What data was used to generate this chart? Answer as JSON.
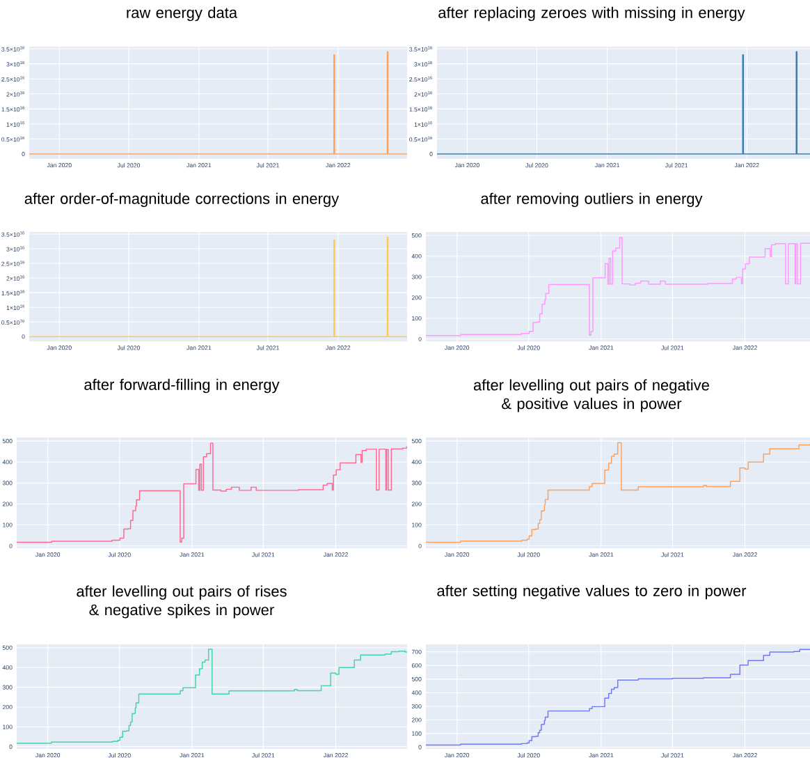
{
  "chart_data": [
    {
      "type": "step",
      "title": "raw energy data",
      "color": "#FFA15A",
      "grid": true,
      "xlim": [
        "2019-10-14",
        "2022-07-01"
      ],
      "ylim": [
        -1600000000000000.0,
        3.57e+16
      ],
      "xticks": [
        {
          "value": "2020-01-01",
          "label": "Jan 2020"
        },
        {
          "value": "2020-07-01",
          "label": "Jul 2020"
        },
        {
          "value": "2021-01-01",
          "label": "Jan 2021"
        },
        {
          "value": "2021-07-01",
          "label": "Jul 2021"
        },
        {
          "value": "2022-01-01",
          "label": "Jan 2022"
        }
      ],
      "yticks": [
        0,
        {
          "value": 5000000000000000.0,
          "label": "0.5×10$^{16}$"
        },
        {
          "value": 1e+16,
          "label": "1×10$^{16}$"
        },
        {
          "value": 1.5e+16,
          "label": "1.5×10$^{16}$"
        },
        {
          "value": 2e+16,
          "label": "2×10$^{16}$"
        },
        {
          "value": 2.5e+16,
          "label": "2.5×10$^{16}$"
        },
        {
          "value": 3e+16,
          "label": "3×10$^{16}$"
        },
        {
          "value": 3.5e+16,
          "label": "3.5×10$^{16}$"
        }
      ],
      "x": [
        "2019-10-14",
        "2021-12-21",
        "2021-12-23",
        "2022-05-10",
        "2022-05-12",
        "2022-07-01"
      ],
      "values": [
        0,
        3.3e+16,
        0,
        3.4e+16,
        0,
        0
      ]
    },
    {
      "type": "step",
      "title": "after replacing zeroes with missing in energy",
      "color": "#3A7DAE",
      "grid": true,
      "xlim": [
        "2019-10-14",
        "2022-06-15"
      ],
      "ylim": [
        -1600000000000000.0,
        3.57e+16
      ],
      "xticks": [
        {
          "value": "2020-01-01",
          "label": "Jan 2020"
        },
        {
          "value": "2020-07-01",
          "label": "Jul 2020"
        },
        {
          "value": "2021-01-01",
          "label": "Jan 2021"
        },
        {
          "value": "2021-07-01",
          "label": "Jul 2021"
        },
        {
          "value": "2022-01-01",
          "label": "Jan 2022"
        }
      ],
      "yticks": [
        0,
        {
          "value": 5000000000000000.0,
          "label": "0.5×10$^{16}$"
        },
        {
          "value": 1e+16,
          "label": "1×10$^{16}$"
        },
        {
          "value": 1.5e+16,
          "label": "1.5×10$^{16}$"
        },
        {
          "value": 2e+16,
          "label": "2×10$^{16}$"
        },
        {
          "value": 2.5e+16,
          "label": "2.5×10$^{16}$"
        },
        {
          "value": 3e+16,
          "label": "3×10$^{16}$"
        },
        {
          "value": 3.5e+16,
          "label": "3.5×10$^{16}$"
        }
      ],
      "x": [
        "2019-10-14",
        "2021-12-21",
        "2021-12-23",
        "2022-05-10",
        "2022-05-12",
        "2022-06-15"
      ],
      "values": [
        0,
        3.3e+16,
        0,
        3.4e+16,
        0,
        0
      ]
    },
    {
      "type": "step",
      "title": "after order-of-magnitude corrections in energy",
      "color": "#FECB52",
      "grid": true,
      "xlim": [
        "2019-10-14",
        "2022-07-01"
      ],
      "ylim": [
        -1600000000000000.0,
        3.57e+16
      ],
      "xticks": [
        {
          "value": "2020-01-01",
          "label": "Jan 2020"
        },
        {
          "value": "2020-07-01",
          "label": "Jul 2020"
        },
        {
          "value": "2021-01-01",
          "label": "Jan 2021"
        },
        {
          "value": "2021-07-01",
          "label": "Jul 2021"
        },
        {
          "value": "2022-01-01",
          "label": "Jan 2022"
        }
      ],
      "yticks": [
        0,
        {
          "value": 5000000000000000.0,
          "label": "0.5×10$^{16}$"
        },
        {
          "value": 1e+16,
          "label": "1×10$^{16}$"
        },
        {
          "value": 1.5e+16,
          "label": "1.5×10$^{16}$"
        },
        {
          "value": 2e+16,
          "label": "2×10$^{16}$"
        },
        {
          "value": 2.5e+16,
          "label": "2.5×10$^{16}$"
        },
        {
          "value": 3e+16,
          "label": "3×10$^{16}$"
        },
        {
          "value": 3.5e+16,
          "label": "3.5×10$^{16}$"
        }
      ],
      "x": [
        "2019-10-14",
        "2021-12-21",
        "2021-12-23",
        "2022-05-10",
        "2022-05-12",
        "2022-07-01"
      ],
      "values": [
        0,
        3.3e+16,
        0,
        3.4e+16,
        0,
        0
      ]
    },
    {
      "type": "step",
      "title": "after removing outliers in energy",
      "color": "#FF97FF",
      "grid": true,
      "xlim": [
        "2019-10-14",
        "2022-06-15"
      ],
      "ylim": [
        -11,
        517
      ],
      "xticks": [
        {
          "value": "2020-01-01",
          "label": "Jan 2020"
        },
        {
          "value": "2020-07-01",
          "label": "Jul 2020"
        },
        {
          "value": "2021-01-01",
          "label": "Jan 2021"
        },
        {
          "value": "2021-07-01",
          "label": "Jul 2021"
        },
        {
          "value": "2022-01-01",
          "label": "Jan 2022"
        }
      ],
      "yticks": [
        0,
        100,
        200,
        300,
        400,
        500
      ],
      "x": [
        "2019-10-14",
        "2020-01-11",
        "2020-06-12",
        "2020-07-02",
        "2020-07-12",
        "2020-07-22",
        "2020-07-29",
        "2020-08-04",
        "2020-08-11",
        "2020-08-13",
        "2020-08-21",
        "2020-12-02",
        "2020-12-06",
        "2020-12-11",
        "2021-01-11",
        "2021-01-18",
        "2021-01-21",
        "2021-01-25",
        "2021-01-30",
        "2021-02-07",
        "2021-02-17",
        "2021-02-23",
        "2021-03-15",
        "2021-03-29",
        "2021-04-11",
        "2021-05-01",
        "2021-05-31",
        "2021-06-13",
        "2021-09-28",
        "2021-11-30",
        "2021-12-10",
        "2021-12-23",
        "2021-12-26",
        "2022-01-02",
        "2022-01-12",
        "2022-02-21",
        "2022-03-06",
        "2022-03-09",
        "2022-03-19",
        "2022-04-14",
        "2022-04-21",
        "2022-05-08",
        "2022-05-10",
        "2022-05-14",
        "2022-05-22",
        "2022-06-15"
      ],
      "values": [
        17,
        22,
        27,
        37,
        80,
        82,
        122,
        168,
        190,
        220,
        263,
        18,
        37,
        296,
        364,
        265,
        390,
        265,
        425,
        440,
        490,
        266,
        261,
        270,
        280,
        265,
        280,
        265,
        268,
        290,
        298,
        266,
        338,
        363,
        396,
        436,
        398,
        455,
        461,
        266,
        461,
        266,
        460,
        266,
        462,
        462
      ]
    },
    {
      "type": "step",
      "title": "after forward-filling in energy",
      "color": "#FF6692",
      "grid": true,
      "xlim": [
        "2019-10-14",
        "2022-07-01"
      ],
      "ylim": [
        -11,
        517
      ],
      "xticks": [
        {
          "value": "2020-01-01",
          "label": "Jan 2020"
        },
        {
          "value": "2020-07-01",
          "label": "Jul 2020"
        },
        {
          "value": "2021-01-01",
          "label": "Jan 2021"
        },
        {
          "value": "2021-07-01",
          "label": "Jul 2021"
        },
        {
          "value": "2022-01-01",
          "label": "Jan 2022"
        }
      ],
      "yticks": [
        0,
        100,
        200,
        300,
        400,
        500
      ],
      "x": [
        "2019-10-14",
        "2020-01-11",
        "2020-06-12",
        "2020-07-02",
        "2020-07-12",
        "2020-07-22",
        "2020-07-29",
        "2020-08-04",
        "2020-08-11",
        "2020-08-13",
        "2020-08-21",
        "2020-12-02",
        "2020-12-06",
        "2020-12-11",
        "2021-01-11",
        "2021-01-18",
        "2021-01-21",
        "2021-01-25",
        "2021-01-30",
        "2021-02-07",
        "2021-02-17",
        "2021-02-23",
        "2021-03-15",
        "2021-03-29",
        "2021-04-11",
        "2021-05-01",
        "2021-05-31",
        "2021-06-13",
        "2021-09-28",
        "2021-11-30",
        "2021-12-10",
        "2021-12-23",
        "2021-12-26",
        "2022-01-02",
        "2022-01-12",
        "2022-02-21",
        "2022-03-06",
        "2022-03-09",
        "2022-03-19",
        "2022-04-14",
        "2022-04-21",
        "2022-05-08",
        "2022-05-10",
        "2022-05-14",
        "2022-05-22",
        "2022-06-20",
        "2022-06-30"
      ],
      "values": [
        17,
        22,
        27,
        37,
        80,
        82,
        122,
        168,
        190,
        220,
        263,
        18,
        37,
        296,
        364,
        265,
        390,
        265,
        425,
        440,
        490,
        266,
        261,
        270,
        280,
        265,
        280,
        265,
        268,
        290,
        298,
        266,
        338,
        363,
        396,
        436,
        398,
        455,
        461,
        266,
        461,
        266,
        460,
        266,
        462,
        466,
        475
      ]
    },
    {
      "type": "step",
      "title": "after levelling out pairs of negative & positive values in power",
      "color": "#FFA15A",
      "grid": true,
      "xlim": [
        "2019-10-14",
        "2022-06-15"
      ],
      "ylim": [
        -11,
        517
      ],
      "xticks": [
        {
          "value": "2020-01-01",
          "label": "Jan 2020"
        },
        {
          "value": "2020-07-01",
          "label": "Jul 2020"
        },
        {
          "value": "2021-01-01",
          "label": "Jan 2021"
        },
        {
          "value": "2021-07-01",
          "label": "Jul 2021"
        },
        {
          "value": "2022-01-01",
          "label": "Jan 2022"
        }
      ],
      "yticks": [
        0,
        100,
        200,
        300,
        400,
        500
      ],
      "x": [
        "2019-10-14",
        "2020-01-10",
        "2020-06-13",
        "2020-06-27",
        "2020-07-02",
        "2020-07-09",
        "2020-07-18",
        "2020-07-25",
        "2020-07-29",
        "2020-08-02",
        "2020-08-08",
        "2020-08-10",
        "2020-08-12",
        "2020-08-19",
        "2020-12-02",
        "2020-12-09",
        "2021-01-10",
        "2021-01-20",
        "2021-01-27",
        "2021-02-03",
        "2021-02-12",
        "2021-02-21",
        "2021-04-05",
        "2021-09-18",
        "2021-09-25",
        "2021-11-25",
        "2021-12-19",
        "2022-01-01",
        "2022-01-09",
        "2022-02-17",
        "2022-03-05",
        "2022-05-18",
        "2022-06-15"
      ],
      "values": [
        17,
        23,
        27,
        32,
        48,
        78,
        80,
        107,
        125,
        167,
        169,
        197,
        221,
        266,
        283,
        298,
        362,
        394,
        427,
        438,
        492,
        266,
        282,
        289,
        283,
        308,
        372,
        366,
        400,
        438,
        463,
        481,
        486
      ]
    },
    {
      "type": "step",
      "title": "after levelling out pairs of rises & negative spikes in power",
      "color": "#3FD5A5",
      "grid": true,
      "xlim": [
        "2019-10-14",
        "2022-07-01"
      ],
      "ylim": [
        -11,
        517
      ],
      "xticks": [
        {
          "value": "2020-01-01",
          "label": "Jan 2020"
        },
        {
          "value": "2020-07-01",
          "label": "Jul 2020"
        },
        {
          "value": "2021-01-01",
          "label": "Jan 2021"
        },
        {
          "value": "2021-07-01",
          "label": "Jul 2021"
        },
        {
          "value": "2022-01-01",
          "label": "Jan 2022"
        }
      ],
      "yticks": [
        0,
        100,
        200,
        300,
        400,
        500
      ],
      "x": [
        "2019-10-14",
        "2020-01-10",
        "2020-06-13",
        "2020-06-27",
        "2020-07-02",
        "2020-07-09",
        "2020-07-18",
        "2020-07-25",
        "2020-07-29",
        "2020-08-02",
        "2020-08-08",
        "2020-08-10",
        "2020-08-12",
        "2020-08-19",
        "2020-12-02",
        "2020-12-09",
        "2021-01-10",
        "2021-01-20",
        "2021-01-27",
        "2021-02-03",
        "2021-02-12",
        "2021-02-21",
        "2021-04-05",
        "2021-09-18",
        "2021-09-25",
        "2021-11-25",
        "2021-12-19",
        "2022-01-01",
        "2022-01-09",
        "2022-02-17",
        "2022-03-05",
        "2022-05-06",
        "2022-05-22",
        "2022-06-10",
        "2022-06-26",
        "2022-07-01"
      ],
      "values": [
        17,
        23,
        27,
        32,
        48,
        78,
        80,
        107,
        125,
        167,
        169,
        197,
        221,
        266,
        283,
        298,
        362,
        394,
        427,
        438,
        492,
        266,
        282,
        289,
        283,
        308,
        372,
        366,
        400,
        438,
        463,
        468,
        480,
        483,
        478,
        476
      ]
    },
    {
      "type": "step",
      "title": "after setting negative values to zero in power",
      "color": "#6E78F7",
      "grid": true,
      "xlim": [
        "2019-10-14",
        "2022-06-15"
      ],
      "ylim": [
        -12,
        755
      ],
      "xticks": [
        {
          "value": "2020-01-01",
          "label": "Jan 2020"
        },
        {
          "value": "2020-07-01",
          "label": "Jul 2020"
        },
        {
          "value": "2021-01-01",
          "label": "Jan 2021"
        },
        {
          "value": "2021-07-01",
          "label": "Jul 2021"
        },
        {
          "value": "2022-01-01",
          "label": "Jan 2022"
        }
      ],
      "yticks": [
        0,
        100,
        200,
        300,
        400,
        500,
        600,
        700
      ],
      "x": [
        "2019-10-14",
        "2020-01-10",
        "2020-06-13",
        "2020-06-27",
        "2020-07-02",
        "2020-07-09",
        "2020-07-18",
        "2020-07-25",
        "2020-07-29",
        "2020-08-02",
        "2020-08-08",
        "2020-08-10",
        "2020-08-12",
        "2020-08-19",
        "2020-12-02",
        "2020-12-09",
        "2021-01-10",
        "2021-01-20",
        "2021-01-27",
        "2021-02-03",
        "2021-02-12",
        "2021-04-05",
        "2021-07-01",
        "2021-09-18",
        "2021-11-25",
        "2021-12-19",
        "2022-01-09",
        "2022-02-17",
        "2022-03-05",
        "2022-05-05",
        "2022-05-20",
        "2022-06-15"
      ],
      "values": [
        16,
        23,
        27,
        32,
        48,
        78,
        80,
        107,
        125,
        167,
        169,
        197,
        221,
        266,
        283,
        298,
        360,
        394,
        425,
        438,
        493,
        502,
        506,
        510,
        535,
        603,
        636,
        674,
        699,
        703,
        718,
        720
      ]
    }
  ]
}
